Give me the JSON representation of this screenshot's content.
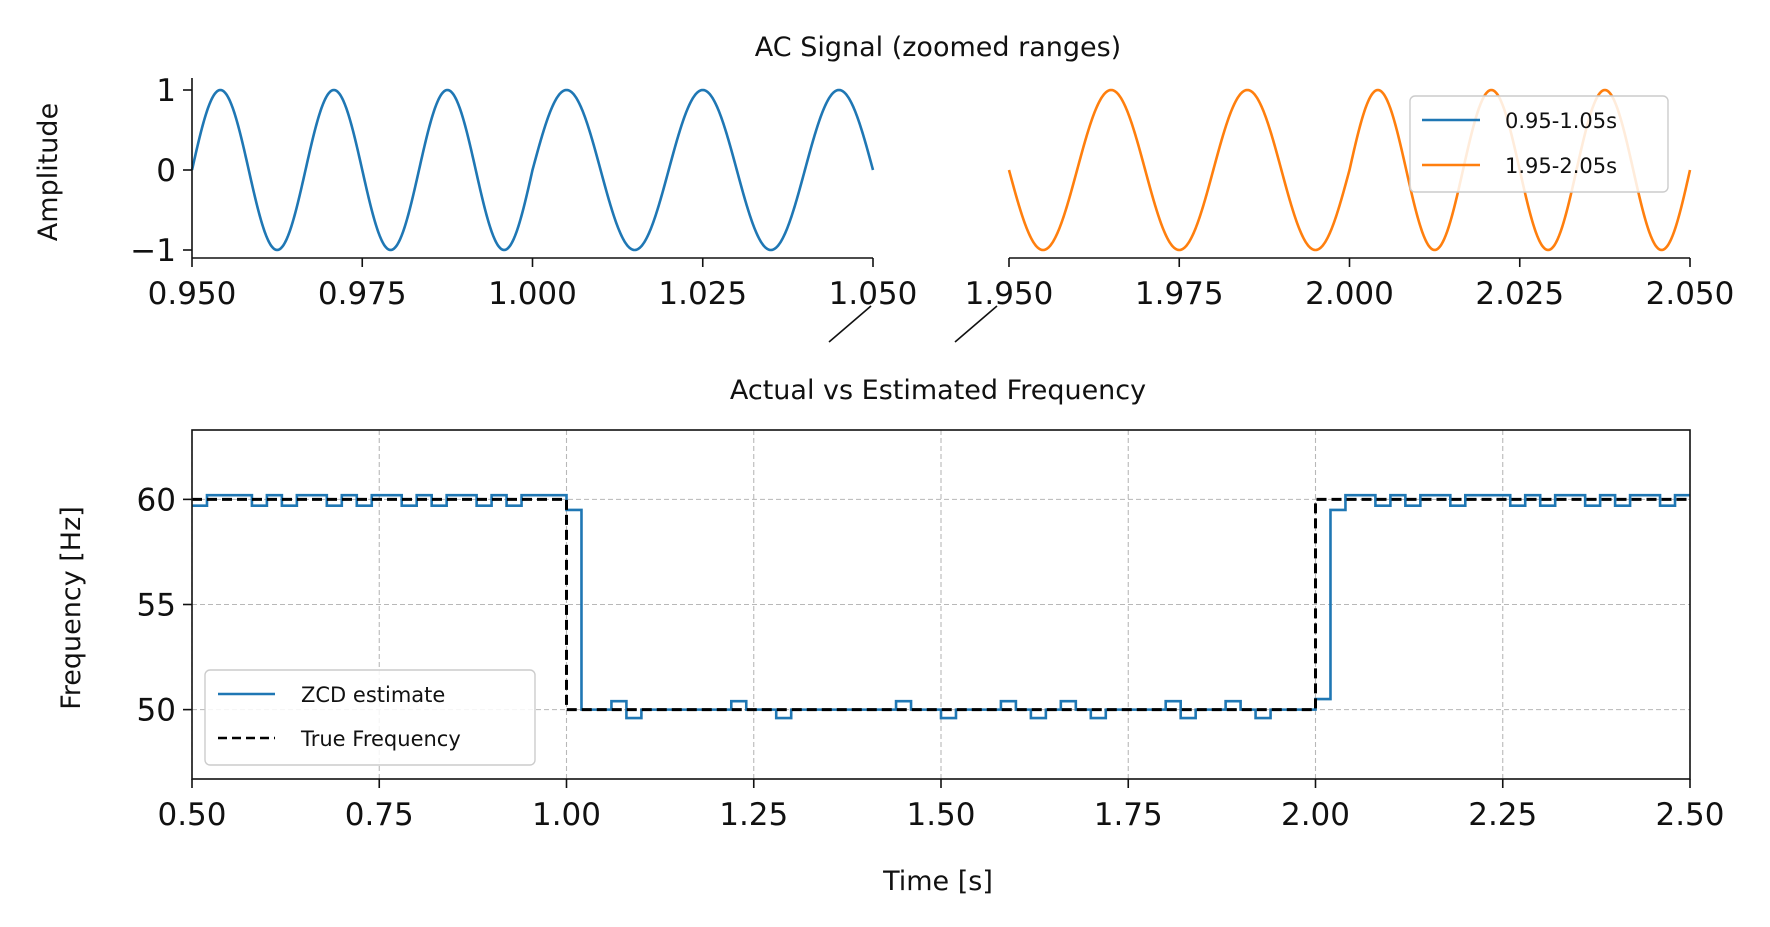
{
  "chart_data": [
    {
      "type": "line",
      "panel": "top-left",
      "title": "AC Signal (zoomed ranges)",
      "ylabel": "Amplitude",
      "xlim": [
        0.95,
        1.05
      ],
      "ylim": [
        -1.1,
        1.1
      ],
      "xticks": [
        "0.950",
        "0.975",
        "1.000",
        "1.025",
        "1.050"
      ],
      "yticks": [
        "1",
        "0",
        "−1"
      ],
      "series": [
        {
          "name": "0.95-1.05s",
          "color": "#1f77b4",
          "description": "sin(2*pi*f*t), f = 60 Hz before t = 1.0 s and 50 Hz after",
          "freq_before_hz": 60,
          "freq_after_hz": 50,
          "switch_time": 1.0
        }
      ]
    },
    {
      "type": "line",
      "panel": "top-right",
      "xlim": [
        1.95,
        2.05
      ],
      "ylim": [
        -1.1,
        1.1
      ],
      "xticks": [
        "1.950",
        "1.975",
        "2.000",
        "2.025",
        "2.050"
      ],
      "series": [
        {
          "name": "1.95-2.05s",
          "color": "#ff7f0e",
          "freq_before_hz": 50,
          "freq_after_hz": 60,
          "switch_time": 2.0
        }
      ],
      "legend": {
        "placement": "top-right",
        "entries": [
          "0.95-1.05s",
          "1.95-2.05s"
        ]
      }
    },
    {
      "type": "line",
      "panel": "bottom",
      "title": "Actual vs Estimated Frequency",
      "xlabel": "Time [s]",
      "ylabel": "Frequency [Hz]",
      "xlim": [
        0.5,
        2.5
      ],
      "ylim": [
        46.7,
        63.3
      ],
      "xticks": [
        "0.50",
        "0.75",
        "1.00",
        "1.25",
        "1.50",
        "1.75",
        "2.00",
        "2.25",
        "2.50"
      ],
      "yticks": [
        "60",
        "55",
        "50"
      ],
      "grid": true,
      "legend": {
        "placement": "lower-left",
        "entries": [
          "ZCD estimate",
          "True Frequency"
        ]
      },
      "series": [
        {
          "name": "ZCD estimate",
          "color": "#1f77b4",
          "style": "step",
          "points": [
            [
              0.5,
              59.7
            ],
            [
              0.52,
              60.2
            ],
            [
              0.58,
              59.7
            ],
            [
              0.6,
              60.2
            ],
            [
              0.62,
              59.7
            ],
            [
              0.64,
              60.2
            ],
            [
              0.68,
              59.7
            ],
            [
              0.7,
              60.2
            ],
            [
              0.72,
              59.7
            ],
            [
              0.74,
              60.2
            ],
            [
              0.78,
              59.7
            ],
            [
              0.8,
              60.2
            ],
            [
              0.82,
              59.7
            ],
            [
              0.84,
              60.2
            ],
            [
              0.88,
              59.7
            ],
            [
              0.9,
              60.2
            ],
            [
              0.92,
              59.7
            ],
            [
              0.94,
              60.2
            ],
            [
              1.0,
              59.5
            ],
            [
              1.02,
              50.0
            ],
            [
              1.06,
              50.4
            ],
            [
              1.08,
              49.6
            ],
            [
              1.1,
              50.0
            ],
            [
              1.22,
              50.4
            ],
            [
              1.24,
              50.0
            ],
            [
              1.28,
              49.6
            ],
            [
              1.3,
              50.0
            ],
            [
              1.44,
              50.4
            ],
            [
              1.46,
              50.0
            ],
            [
              1.5,
              49.6
            ],
            [
              1.52,
              50.0
            ],
            [
              1.58,
              50.4
            ],
            [
              1.6,
              50.0
            ],
            [
              1.62,
              49.6
            ],
            [
              1.64,
              50.0
            ],
            [
              1.66,
              50.4
            ],
            [
              1.68,
              50.0
            ],
            [
              1.7,
              49.6
            ],
            [
              1.72,
              50.0
            ],
            [
              1.8,
              50.4
            ],
            [
              1.82,
              49.6
            ],
            [
              1.84,
              50.0
            ],
            [
              1.88,
              50.4
            ],
            [
              1.9,
              50.0
            ],
            [
              1.92,
              49.6
            ],
            [
              1.94,
              50.0
            ],
            [
              2.0,
              50.5
            ],
            [
              2.02,
              59.5
            ],
            [
              2.04,
              60.2
            ],
            [
              2.08,
              59.7
            ],
            [
              2.1,
              60.2
            ],
            [
              2.12,
              59.7
            ],
            [
              2.14,
              60.2
            ],
            [
              2.18,
              59.7
            ],
            [
              2.2,
              60.2
            ],
            [
              2.26,
              59.7
            ],
            [
              2.28,
              60.2
            ],
            [
              2.3,
              59.7
            ],
            [
              2.32,
              60.2
            ],
            [
              2.36,
              59.7
            ],
            [
              2.38,
              60.2
            ],
            [
              2.4,
              59.7
            ],
            [
              2.42,
              60.2
            ],
            [
              2.46,
              59.7
            ],
            [
              2.48,
              60.2
            ],
            [
              2.5,
              60.2
            ]
          ]
        },
        {
          "name": "True Frequency",
          "color": "#000000",
          "style": "step-dashed",
          "points": [
            [
              0.5,
              60
            ],
            [
              1.0,
              60
            ],
            [
              1.0,
              50
            ],
            [
              2.0,
              50
            ],
            [
              2.0,
              60
            ],
            [
              2.5,
              60
            ]
          ]
        }
      ]
    }
  ]
}
